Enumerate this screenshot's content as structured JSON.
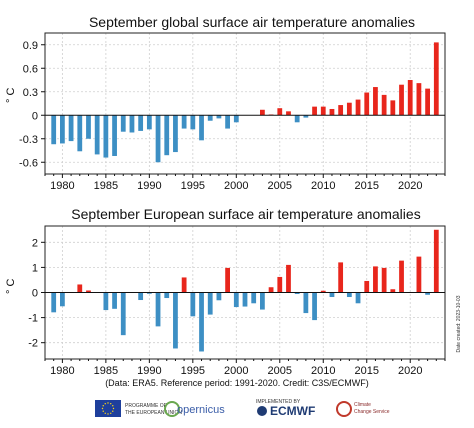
{
  "chart_data": [
    {
      "type": "bar",
      "title": "September global surface air temperature anomalies",
      "ylabel": "° C",
      "xlim": [
        1978,
        2024
      ],
      "ylim": [
        -0.75,
        1.05
      ],
      "yticks": [
        -0.6,
        -0.3,
        0,
        0.3,
        0.6,
        0.9
      ],
      "ytick_labels": [
        "-0.6",
        "-0.3",
        "0",
        "0.3",
        "0.6",
        "0.9"
      ],
      "xticks": [
        1980,
        1985,
        1990,
        1995,
        2000,
        2005,
        2010,
        2015,
        2020
      ],
      "xtick_labels": [
        "1980",
        "1985",
        "1990",
        "1995",
        "2000",
        "2005",
        "2010",
        "2015",
        "2020"
      ],
      "grid": true,
      "colors": {
        "negative": "#3d8fc4",
        "positive": "#e8261c"
      },
      "x": [
        1979,
        1980,
        1981,
        1982,
        1983,
        1984,
        1985,
        1986,
        1987,
        1988,
        1989,
        1990,
        1991,
        1992,
        1993,
        1994,
        1995,
        1996,
        1997,
        1998,
        1999,
        2000,
        2001,
        2002,
        2003,
        2004,
        2005,
        2006,
        2007,
        2008,
        2009,
        2010,
        2011,
        2012,
        2013,
        2014,
        2015,
        2016,
        2017,
        2018,
        2019,
        2020,
        2021,
        2022,
        2023
      ],
      "values": [
        -0.37,
        -0.36,
        -0.33,
        -0.46,
        -0.3,
        -0.5,
        -0.54,
        -0.52,
        -0.21,
        -0.22,
        -0.2,
        -0.18,
        -0.6,
        -0.51,
        -0.47,
        -0.17,
        -0.18,
        -0.32,
        -0.07,
        -0.04,
        -0.17,
        -0.09,
        0.0,
        0.0,
        0.07,
        0.01,
        0.09,
        0.05,
        -0.09,
        -0.03,
        0.11,
        0.11,
        0.08,
        0.13,
        0.16,
        0.2,
        0.29,
        0.36,
        0.26,
        0.19,
        0.39,
        0.45,
        0.41,
        0.34,
        0.93
      ]
    },
    {
      "type": "bar",
      "title": "September European surface air temperature anomalies",
      "ylabel": "° C",
      "xlim": [
        1978,
        2024
      ],
      "ylim": [
        -2.65,
        2.65
      ],
      "yticks": [
        -2,
        -1,
        0,
        1,
        2
      ],
      "ytick_labels": [
        "-2",
        "-1",
        "0",
        "1",
        "2"
      ],
      "xticks": [
        1980,
        1985,
        1990,
        1995,
        2000,
        2005,
        2010,
        2015,
        2020
      ],
      "xtick_labels": [
        "1980",
        "1985",
        "1990",
        "1995",
        "2000",
        "2005",
        "2010",
        "2015",
        "2020"
      ],
      "grid": true,
      "colors": {
        "negative": "#3d8fc4",
        "positive": "#e8261c"
      },
      "x": [
        1979,
        1980,
        1981,
        1982,
        1983,
        1984,
        1985,
        1986,
        1987,
        1988,
        1989,
        1990,
        1991,
        1992,
        1993,
        1994,
        1995,
        1996,
        1997,
        1998,
        1999,
        2000,
        2001,
        2002,
        2003,
        2004,
        2005,
        2006,
        2007,
        2008,
        2009,
        2010,
        2011,
        2012,
        2013,
        2014,
        2015,
        2016,
        2017,
        2018,
        2019,
        2020,
        2021,
        2022,
        2023
      ],
      "values": [
        -0.79,
        -0.55,
        0.02,
        0.32,
        0.08,
        -0.02,
        -0.7,
        -0.65,
        -1.7,
        -0.02,
        -0.3,
        -0.05,
        -1.35,
        -0.22,
        -2.23,
        0.6,
        -0.95,
        -2.35,
        -0.88,
        -0.31,
        0.98,
        -0.58,
        -0.56,
        -0.43,
        -0.68,
        0.21,
        0.62,
        1.1,
        -0.06,
        -0.82,
        -1.1,
        0.07,
        -0.18,
        1.2,
        -0.18,
        -0.43,
        0.46,
        1.04,
        0.98,
        0.13,
        1.27,
        0.0,
        1.43,
        -0.09,
        2.5
      ]
    }
  ],
  "footer": {
    "note": "(Data: ERA5.  Reference period: 1991-2020.  Credit: C3S/ECMWF)",
    "date_created": "Date created: 2023-10-03"
  },
  "logos": {
    "eu_line1": "PROGRAMME OF",
    "eu_line2": "THE EUROPEAN UNION",
    "copernicus": "opernicus",
    "ecmwf_small": "IMPLEMENTED BY",
    "ecmwf": "ECMWF",
    "c3s_line1": "Climate",
    "c3s_line2": "Change Service"
  }
}
